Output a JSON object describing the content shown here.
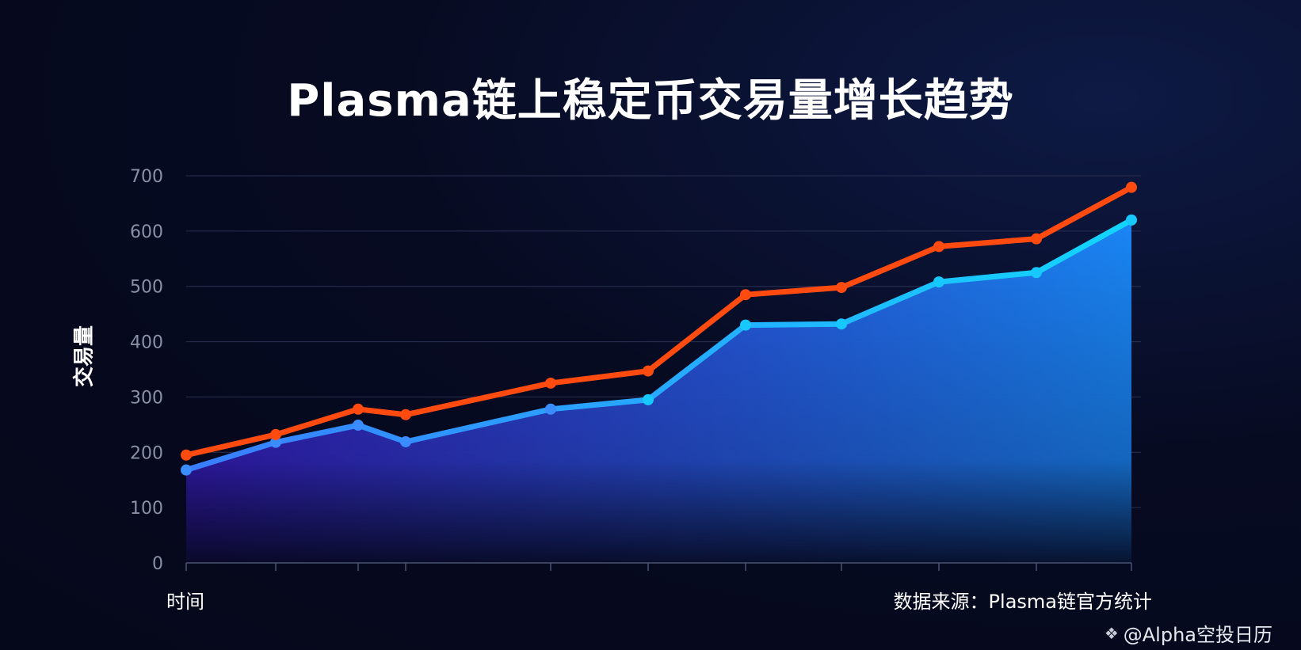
{
  "title": "Plasma链上稳定币交易量增长趋势",
  "ylabel": "交易量",
  "xlabel": "时间",
  "source": "数据来源：Plasma链官方统计",
  "watermark": "@Alpha空投日历",
  "colors": {
    "orange_series": "#ff4a10",
    "blue_series": "#17c8ff",
    "area_top": "#1a8cff",
    "area_bottom": "#3a1cc8",
    "grid": "#2a3150"
  },
  "chart_data": {
    "type": "line",
    "ylim": [
      0,
      700
    ],
    "yticks": [
      0,
      100,
      200,
      300,
      400,
      500,
      600,
      700
    ],
    "ylabel": "交易量",
    "xlabel": "时间",
    "x": [
      1,
      2,
      3,
      4,
      5,
      6,
      7,
      8,
      9,
      10,
      11
    ],
    "series": [
      {
        "values": [
          195,
          232,
          278,
          268,
          325,
          347,
          485,
          498,
          572,
          586,
          679
        ]
      },
      {
        "values": [
          168,
          218,
          249,
          219,
          278,
          295,
          430,
          432,
          508,
          525,
          620
        ]
      }
    ],
    "grid": true,
    "area_fill_series": 1
  }
}
